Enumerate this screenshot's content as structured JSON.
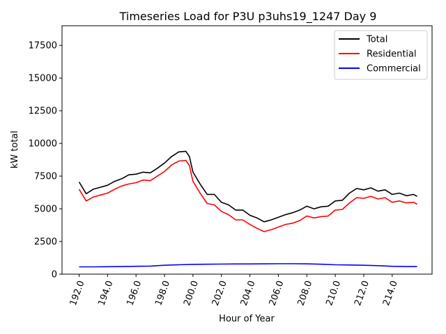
{
  "chart_data": {
    "type": "line",
    "title": "Timeseries Load for P3U p3uhs19_1247  Day 9",
    "xlabel": "Hour of Year",
    "ylabel": "kW total",
    "xlim": [
      190.8,
      216.8
    ],
    "ylim": [
      0,
      19000
    ],
    "x_ticks": [
      192,
      194,
      196,
      198,
      200,
      202,
      204,
      206,
      208,
      210,
      212,
      214
    ],
    "x_tick_labels": [
      "192.0",
      "194.0",
      "196.0",
      "198.0",
      "200.0",
      "202.0",
      "204.0",
      "206.0",
      "208.0",
      "210.0",
      "212.0",
      "214.0"
    ],
    "y_ticks": [
      0,
      2500,
      5000,
      7500,
      10000,
      12500,
      15000,
      17500
    ],
    "y_tick_labels": [
      "0",
      "2500",
      "5000",
      "7500",
      "10000",
      "12500",
      "15000",
      "17500"
    ],
    "grid": false,
    "legend_position": "top-right",
    "series": [
      {
        "name": "Total",
        "color": "#000000",
        "x": [
          192.0,
          192.5,
          193.0,
          193.5,
          194.0,
          194.5,
          195.0,
          195.5,
          196.0,
          196.5,
          197.0,
          197.5,
          198.0,
          198.5,
          199.0,
          199.5,
          199.75,
          200.0,
          200.5,
          201.0,
          201.5,
          202.0,
          202.5,
          203.0,
          203.5,
          204.0,
          204.5,
          205.0,
          205.5,
          206.0,
          206.5,
          207.0,
          207.5,
          208.0,
          208.5,
          209.0,
          209.5,
          210.0,
          210.5,
          211.0,
          211.5,
          212.0,
          212.5,
          213.0,
          213.5,
          214.0,
          214.5,
          215.0,
          215.5,
          215.75
        ],
        "values": [
          7050,
          6150,
          6500,
          6650,
          6800,
          7100,
          7300,
          7600,
          7650,
          7800,
          7750,
          8100,
          8500,
          9000,
          9350,
          9400,
          9000,
          7800,
          6900,
          6100,
          6100,
          5500,
          5300,
          4900,
          4900,
          4500,
          4300,
          4000,
          4150,
          4350,
          4550,
          4700,
          4900,
          5200,
          5000,
          5150,
          5200,
          5600,
          5650,
          6200,
          6550,
          6450,
          6600,
          6350,
          6450,
          6100,
          6200,
          6000,
          6100,
          5950
        ]
      },
      {
        "name": "Residential",
        "color": "#ff0000",
        "x": [
          192.0,
          192.5,
          193.0,
          193.5,
          194.0,
          194.5,
          195.0,
          195.5,
          196.0,
          196.5,
          197.0,
          197.5,
          198.0,
          198.5,
          199.0,
          199.5,
          199.75,
          200.0,
          200.5,
          201.0,
          201.5,
          202.0,
          202.5,
          203.0,
          203.5,
          204.0,
          204.5,
          205.0,
          205.5,
          206.0,
          206.5,
          207.0,
          207.5,
          208.0,
          208.5,
          209.0,
          209.5,
          210.0,
          210.5,
          211.0,
          211.5,
          212.0,
          212.5,
          213.0,
          213.5,
          214.0,
          214.5,
          215.0,
          215.5,
          215.75
        ],
        "values": [
          6500,
          5600,
          5900,
          6050,
          6200,
          6500,
          6750,
          6900,
          7000,
          7200,
          7150,
          7500,
          7850,
          8350,
          8650,
          8700,
          8300,
          7100,
          6200,
          5400,
          5300,
          4800,
          4550,
          4150,
          4150,
          3800,
          3500,
          3250,
          3400,
          3600,
          3800,
          3900,
          4100,
          4450,
          4300,
          4400,
          4450,
          4900,
          4950,
          5450,
          5850,
          5800,
          5950,
          5750,
          5850,
          5500,
          5600,
          5450,
          5500,
          5350
        ]
      },
      {
        "name": "Commercial",
        "color": "#0000ff",
        "x": [
          192.0,
          193.0,
          194.0,
          195.0,
          196.0,
          197.0,
          198.0,
          199.0,
          200.0,
          201.0,
          202.0,
          203.0,
          204.0,
          205.0,
          206.0,
          207.0,
          208.0,
          209.0,
          210.0,
          211.0,
          212.0,
          213.0,
          214.0,
          215.0,
          215.75
        ],
        "values": [
          560,
          560,
          570,
          580,
          600,
          620,
          680,
          720,
          750,
          760,
          770,
          780,
          780,
          790,
          800,
          800,
          790,
          760,
          720,
          700,
          680,
          650,
          600,
          580,
          580
        ]
      }
    ]
  }
}
